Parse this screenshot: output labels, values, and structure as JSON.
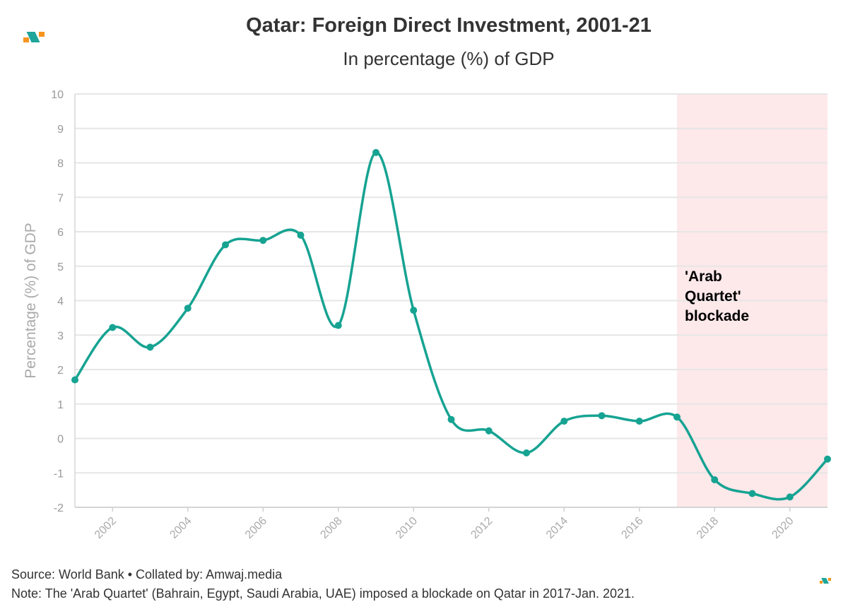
{
  "header": {
    "title": "Qatar: Foreign Direct Investment, 2001-21",
    "subtitle": "In percentage (%) of GDP"
  },
  "footer": {
    "source": "Source: World Bank • Collated by: Amwaj.media",
    "note": "Note: The 'Arab Quartet' (Bahrain, Egypt, Saudi Arabia, UAE) imposed a blockade on Qatar in 2017-Jan. 2021."
  },
  "logo": {
    "colors": [
      "#f7941d",
      "#1fa59a"
    ],
    "icon": "amwaj-logo-icon"
  },
  "chart_data": {
    "type": "line",
    "title": "Qatar: Foreign Direct Investment, 2001-21",
    "subtitle": "In percentage (%) of GDP",
    "xlabel": "",
    "ylabel": "Percentage (%) of GDP",
    "xlim": [
      2001,
      2021
    ],
    "ylim": [
      -2,
      10
    ],
    "x_ticks": [
      "2002",
      "2004",
      "2006",
      "2008",
      "2010",
      "2012",
      "2014",
      "2016",
      "2018",
      "2020"
    ],
    "y_ticks": [
      "10",
      "9",
      "8",
      "7",
      "6",
      "5",
      "4",
      "3",
      "2",
      "1",
      "0",
      "-1",
      "-2"
    ],
    "grid": true,
    "legend": "none",
    "line_color": "#16a392",
    "band_color": "#fde8ea",
    "series": [
      {
        "x": [
          2001,
          2002,
          2003,
          2004,
          2005,
          2006,
          2007,
          2008,
          2009,
          2010,
          2011,
          2012,
          2013,
          2014,
          2015,
          2016,
          2017,
          2018,
          2019,
          2020,
          2021
        ],
        "values": [
          1.7,
          3.22,
          2.65,
          3.78,
          5.62,
          5.75,
          5.9,
          3.28,
          8.3,
          3.72,
          0.55,
          0.22,
          -0.42,
          0.5,
          0.66,
          0.5,
          0.62,
          -1.2,
          -1.6,
          -1.7,
          -0.6
        ]
      }
    ],
    "shaded_region": {
      "x_start": 2017,
      "x_end": 2021,
      "label_lines": [
        "'Arab",
        "Quartet'",
        "blockade"
      ]
    }
  }
}
